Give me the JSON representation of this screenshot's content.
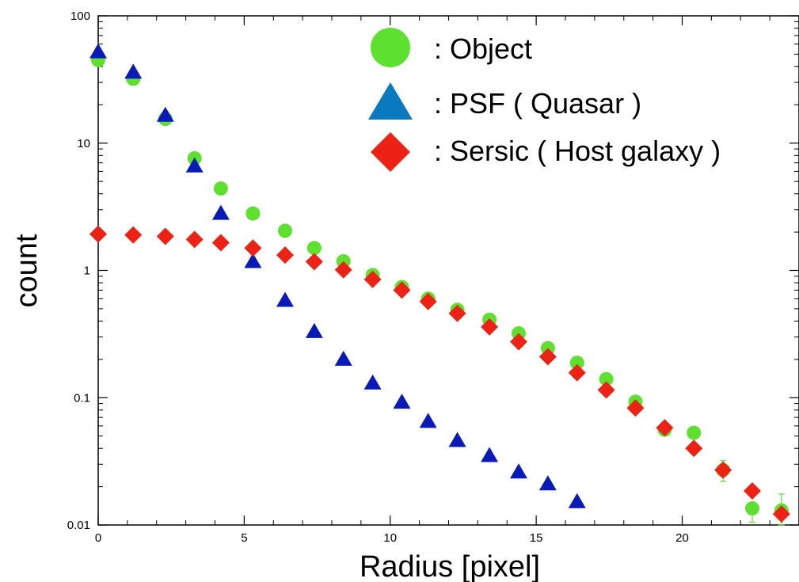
{
  "chart_data": {
    "type": "scatter",
    "title": "",
    "xlabel": "Radius [pixel]",
    "ylabel": "count",
    "xlim": [
      0,
      24
    ],
    "ylim": [
      0.01,
      100
    ],
    "yscale": "log",
    "grid": false,
    "legend_position": "top-right",
    "x_ticks": [
      {
        "value": 0,
        "label": "0"
      },
      {
        "value": 5,
        "label": "5"
      },
      {
        "value": 10,
        "label": "10"
      },
      {
        "value": 15,
        "label": "15"
      },
      {
        "value": 20,
        "label": "20"
      }
    ],
    "y_ticks": [
      {
        "value": 100,
        "label": "100"
      },
      {
        "value": 10,
        "label": "10"
      },
      {
        "value": 1,
        "label": "1"
      },
      {
        "value": 0.1,
        "label": "0.1"
      },
      {
        "value": 0.01,
        "label": "0.01"
      }
    ],
    "series": [
      {
        "name": ": Object",
        "marker": "circle",
        "color": "#5ee02f",
        "x": [
          0,
          1.2,
          2.3,
          3.3,
          4.2,
          5.3,
          6.4,
          7.4,
          8.4,
          9.4,
          10.4,
          11.3,
          12.3,
          13.4,
          14.4,
          15.4,
          16.4,
          17.4,
          18.4,
          19.4,
          20.4,
          21.4,
          22.4,
          23.4
        ],
        "y": [
          45,
          32,
          15.5,
          7.6,
          4.4,
          2.8,
          2.05,
          1.5,
          1.18,
          0.92,
          0.74,
          0.6,
          0.49,
          0.41,
          0.32,
          0.245,
          0.188,
          0.14,
          0.093,
          0.056,
          0.053,
          0.027,
          0.0135,
          0.013
        ],
        "error_bars": [
          {
            "x": 21.4,
            "lower": 0.022,
            "upper": 0.032
          },
          {
            "x": 22.4,
            "lower": 0.0105,
            "upper": 0.0135
          },
          {
            "x": 23.4,
            "lower": 0.01,
            "upper": 0.0175
          }
        ]
      },
      {
        "name": ": PSF ( Quasar )",
        "marker": "triangle",
        "color": "#0a1ab8",
        "x": [
          0,
          1.2,
          2.3,
          3.3,
          4.2,
          5.3,
          6.4,
          7.4,
          8.4,
          9.4,
          10.4,
          11.3,
          12.3,
          13.4,
          14.4,
          15.4,
          16.4
        ],
        "y": [
          52,
          36,
          16.5,
          6.6,
          2.8,
          1.17,
          0.58,
          0.33,
          0.2,
          0.13,
          0.092,
          0.065,
          0.046,
          0.035,
          0.026,
          0.021,
          0.0152
        ]
      },
      {
        "name": ": Sersic ( Host galaxy )",
        "marker": "diamond",
        "color": "#ee2214",
        "x": [
          0,
          1.2,
          2.3,
          3.3,
          4.2,
          5.3,
          6.4,
          7.4,
          8.4,
          9.4,
          10.4,
          11.3,
          12.3,
          13.4,
          14.4,
          15.4,
          16.4,
          17.4,
          18.4,
          19.4,
          20.4,
          21.4,
          22.4,
          23.4
        ],
        "y": [
          1.93,
          1.9,
          1.85,
          1.75,
          1.65,
          1.5,
          1.32,
          1.17,
          1.01,
          0.85,
          0.7,
          0.57,
          0.46,
          0.36,
          0.275,
          0.21,
          0.157,
          0.115,
          0.083,
          0.058,
          0.04,
          0.027,
          0.0185,
          0.0122
        ]
      }
    ]
  }
}
